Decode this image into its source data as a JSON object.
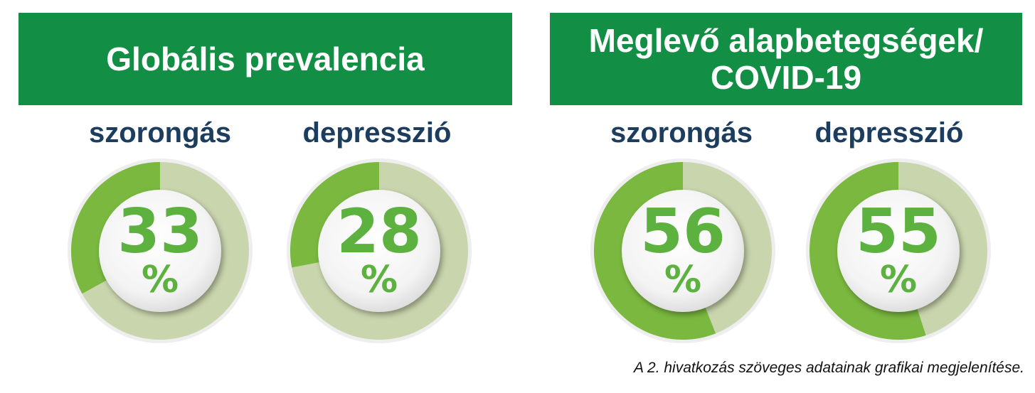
{
  "panels": [
    {
      "title_lines": [
        "Globális prevalencia"
      ]
    },
    {
      "title_lines": [
        "Meglevő alapbetegségek/",
        "COVID-19"
      ]
    }
  ],
  "chart_data": [
    {
      "type": "pie",
      "title": "Globális prevalencia",
      "categories": [
        "szorongás",
        "depresszió"
      ],
      "values": [
        33,
        28
      ],
      "unit": "%"
    },
    {
      "type": "pie",
      "title": "Meglevő alapbetegségek/ COVID-19",
      "categories": [
        "szorongás",
        "depresszió"
      ],
      "values": [
        56,
        55
      ],
      "unit": "%"
    }
  ],
  "colors": {
    "banner": "#128f45",
    "fill": "#7ab83f",
    "track": "#c9d5ad",
    "text_green": "#5cb13f",
    "label_blue": "#1c3d5e"
  },
  "caption": "A 2. hivatkozás szöveges adatainak grafikai megjelenítése."
}
